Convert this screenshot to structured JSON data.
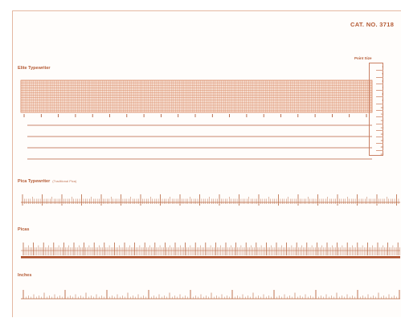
{
  "header": {
    "fine_print": [
      "",
      ""
    ],
    "catalog_number": "CAT. NO. 3718"
  },
  "point_size": {
    "label": "Point Size",
    "values": [
      "4",
      "5",
      "6",
      "7",
      "8",
      "9",
      "10",
      "11",
      "12",
      "14",
      "16",
      "18",
      "20",
      "24"
    ]
  },
  "sections": {
    "elite": {
      "title": "Elite Typewriter",
      "subtitle": ""
    },
    "pica": {
      "title": "Pica Typewriter",
      "subtitle": "(Traditional Pica)"
    },
    "picas": {
      "title": "Picas",
      "subtitle": ""
    },
    "inches": {
      "title": "Inches",
      "subtitle": ""
    }
  },
  "colors": {
    "ink": "#b8653f",
    "ink_dark": "#a94a26",
    "grid": "#d98a66",
    "grid_fill": "#f6ddd0",
    "paper": "#fffdfb"
  }
}
